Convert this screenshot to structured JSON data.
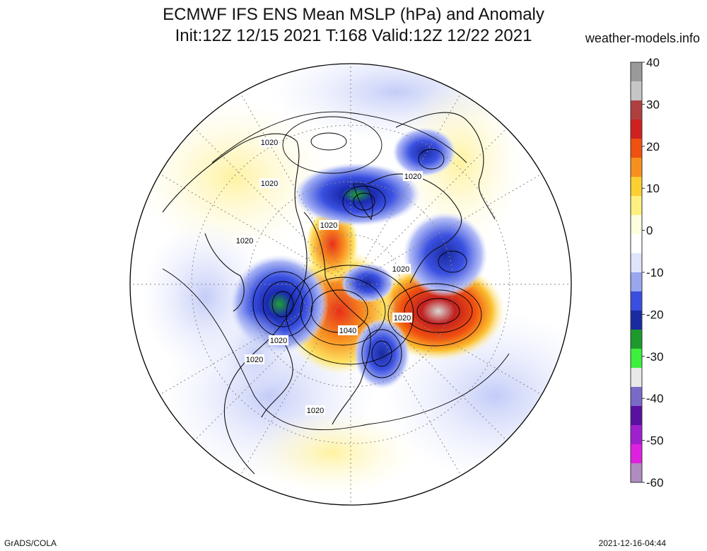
{
  "title_line1": "ECMWF IFS ENS Mean MSLP (hPa) and Anomaly",
  "title_line2": "Init:12Z 12/15 2021  T:168 Valid:12Z 12/22 2021",
  "site": "weather-models.info",
  "footer_left": "GrADS/COLA",
  "footer_right": "2021-12-16-04:44",
  "colorbar": {
    "ticks": [
      "40",
      "30",
      "20",
      "10",
      "0",
      "-10",
      "-20",
      "-30",
      "-40",
      "-50",
      "-60"
    ],
    "colors": [
      "#9a9a9a",
      "#c6c6c6",
      "#b04040",
      "#d02020",
      "#f05010",
      "#f89020",
      "#fbd030",
      "#fff080",
      "#fffde0",
      "#ffffff",
      "#dfe4fa",
      "#9aa6f0",
      "#3a4ee0",
      "#1a2aa0",
      "#1c9a2c",
      "#3cf03c",
      "#e8e8e8",
      "#7a6ac8",
      "#5a10a0",
      "#a020d0",
      "#e020e0",
      "#b08cc0"
    ]
  },
  "isobar_labels": [
    {
      "text": "1020"
    },
    {
      "text": "1020"
    },
    {
      "text": "1020"
    },
    {
      "text": "1020"
    },
    {
      "text": "1020"
    },
    {
      "text": "1020"
    },
    {
      "text": "1020"
    },
    {
      "text": "1040"
    },
    {
      "text": "1020"
    },
    {
      "text": "1020"
    },
    {
      "text": "1020"
    }
  ],
  "map": {
    "projection": "north-polar-stereographic",
    "anomaly_colors": {
      "high": "#e02010",
      "high_core": "#c8c8c8",
      "mid": "#f8a020",
      "low": "#2a40e0",
      "low_core": "#20a030",
      "weak_pos": "#fff4a0",
      "weak_neg": "#c8d0f8"
    }
  }
}
